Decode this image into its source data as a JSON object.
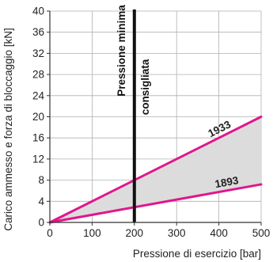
{
  "chart_data": {
    "type": "line",
    "xlabel": "Pressione di esercizio [bar]",
    "ylabel": "Carico ammesso e forza di bloccaggio [kN]",
    "xlim": [
      0,
      500
    ],
    "ylim": [
      0,
      40
    ],
    "xticks": [
      0,
      100,
      200,
      300,
      400,
      500
    ],
    "yticks": [
      0,
      4,
      8,
      12,
      16,
      20,
      24,
      28,
      32,
      36,
      40
    ],
    "grid": true,
    "series": [
      {
        "name": "1933",
        "x": [
          0,
          500
        ],
        "y": [
          0,
          20
        ],
        "color": "#e0168c"
      },
      {
        "name": "1893",
        "x": [
          0,
          500
        ],
        "y": [
          0,
          7.2
        ],
        "color": "#e0168c"
      }
    ],
    "shaded_region": {
      "between": [
        "1933",
        "1893"
      ],
      "color": "#dcdcdc"
    },
    "reference_line": {
      "x": 200,
      "label_line1": "Pressione minima",
      "label_line2": "consigliata",
      "color": "#111111"
    }
  }
}
